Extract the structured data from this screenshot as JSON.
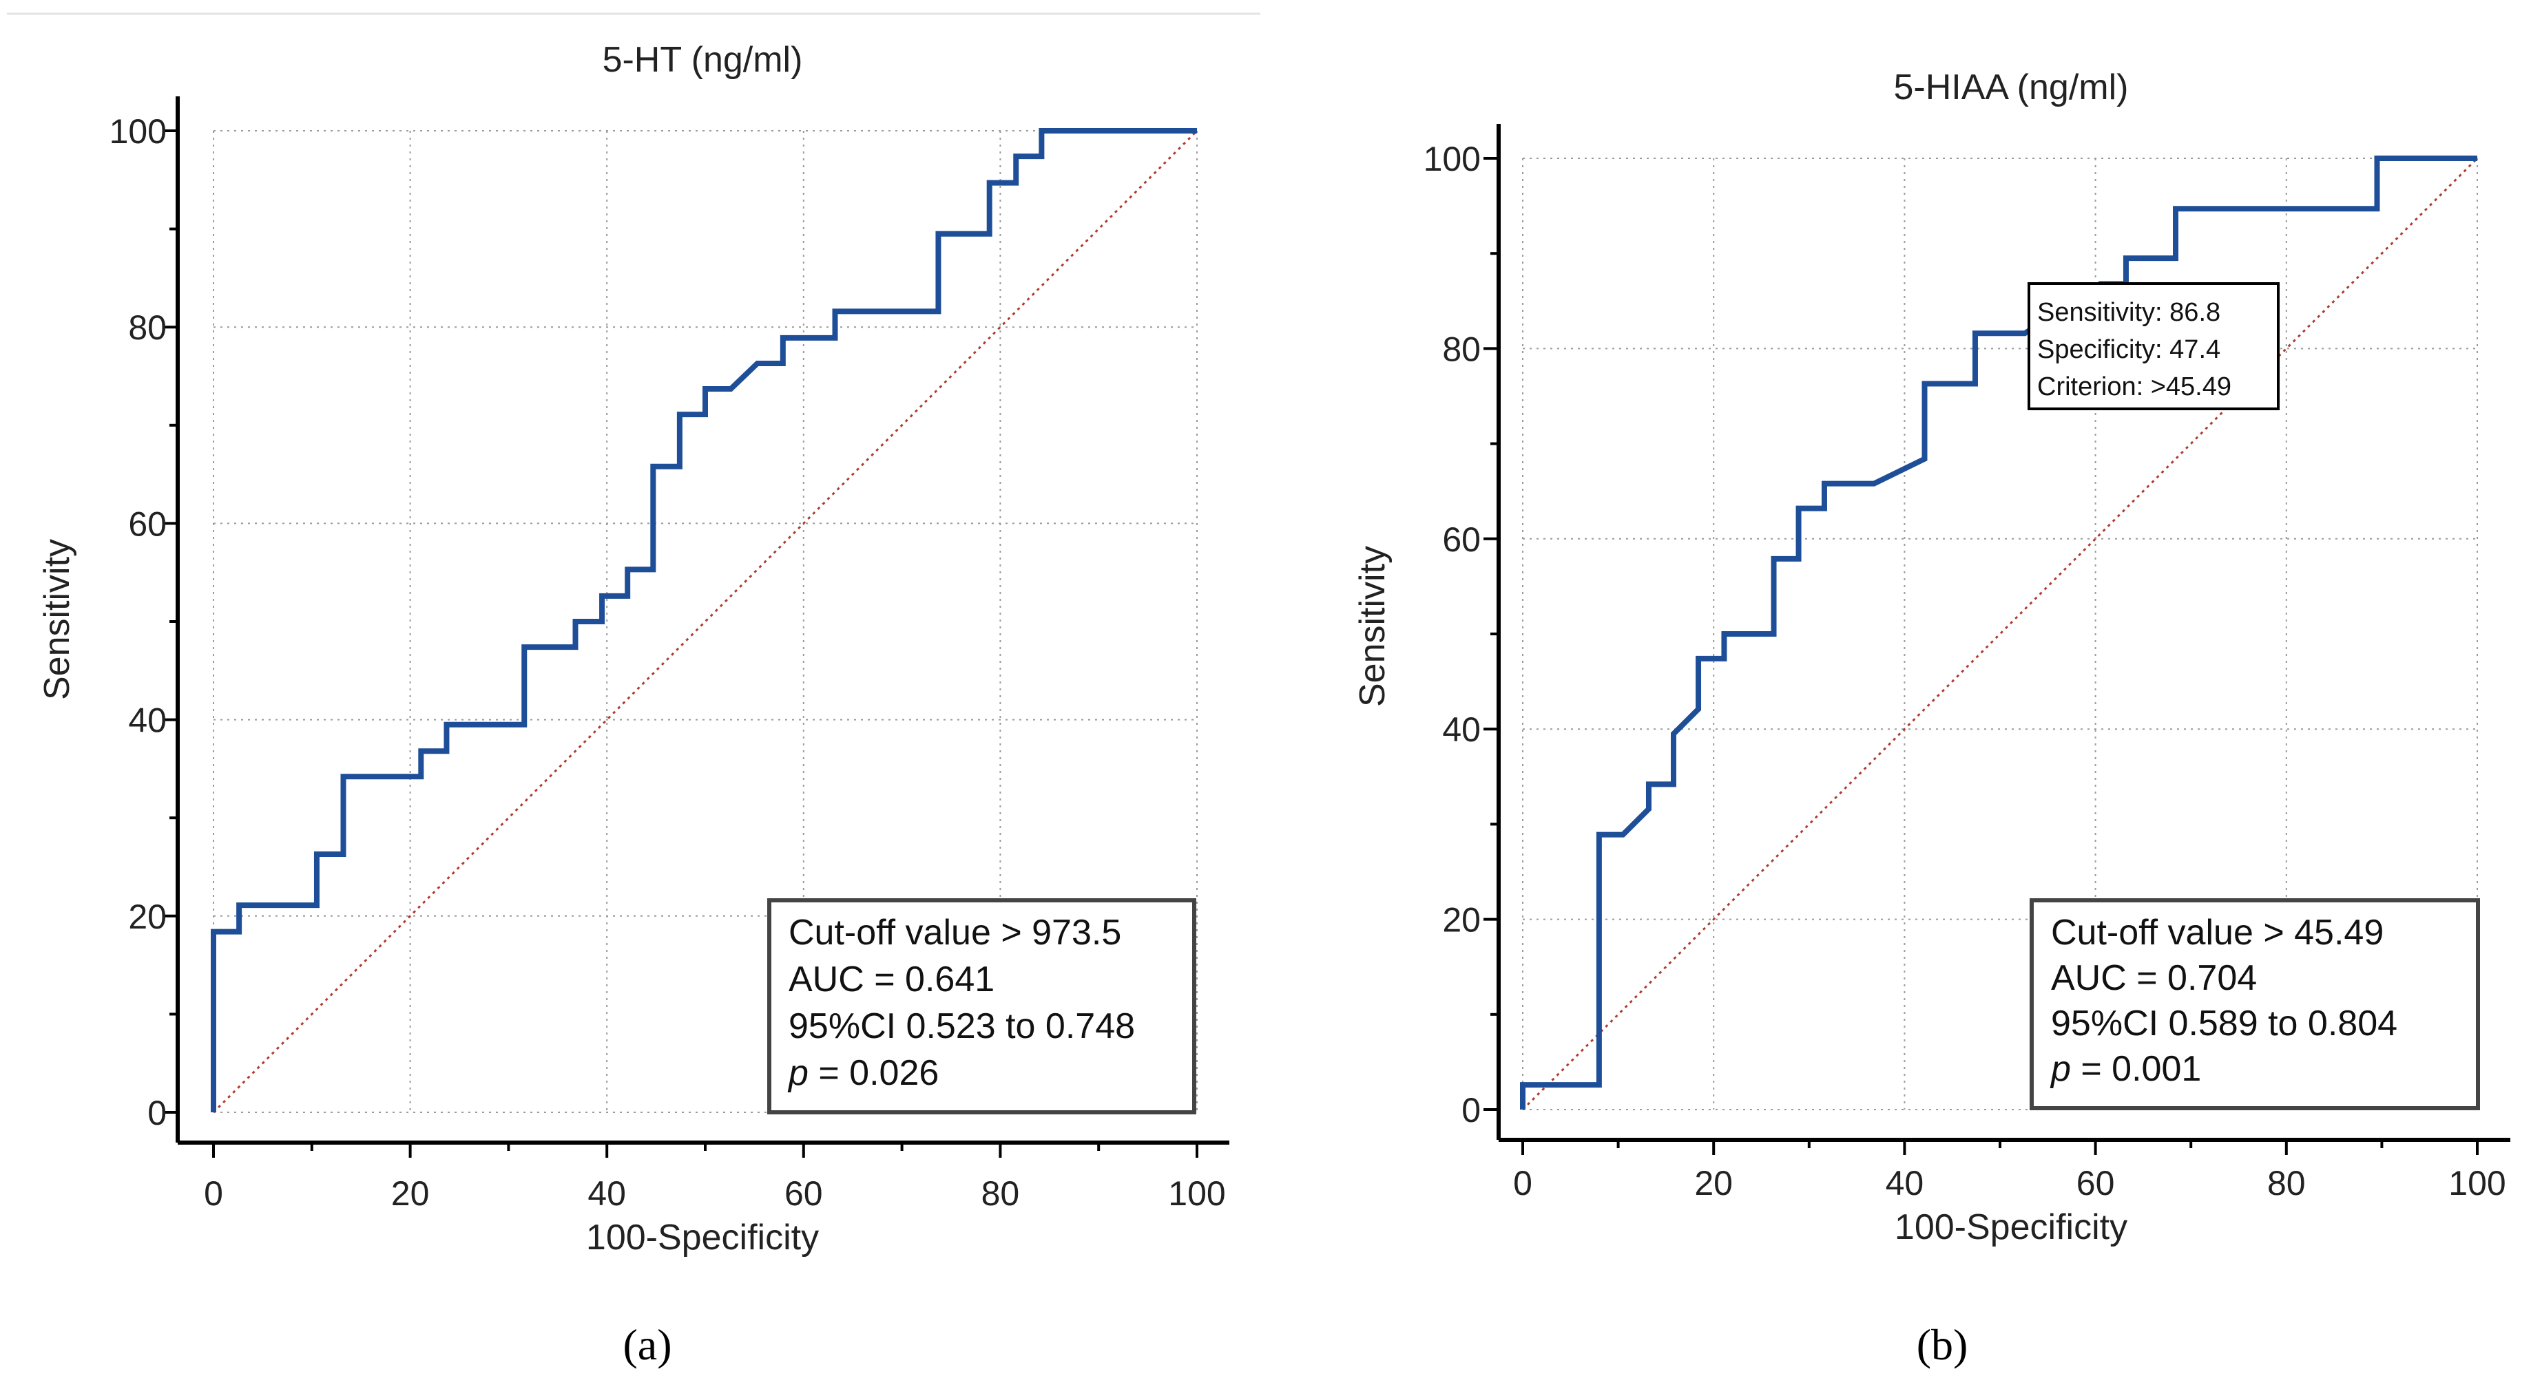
{
  "chart_data": [
    {
      "type": "line",
      "panel_label": "(a)",
      "title": "5-HT (ng/ml)",
      "xlabel": "100-Specificity",
      "ylabel": "Sensitivity",
      "xlim": [
        0,
        100
      ],
      "ylim": [
        0,
        100
      ],
      "xticks": [
        0,
        20,
        40,
        60,
        80,
        100
      ],
      "yticks": [
        0,
        20,
        40,
        60,
        80,
        100
      ],
      "grid": true,
      "colors": {
        "roc": "#1f4e99",
        "reference": "#b03a2e",
        "grid": "#9a9a9a"
      },
      "series": [
        {
          "name": "ROC curve",
          "x": [
            0,
            0,
            2.6,
            2.6,
            10.5,
            10.5,
            13.2,
            13.2,
            21.1,
            21.1,
            23.7,
            23.7,
            31.6,
            31.6,
            36.8,
            36.8,
            39.5,
            39.5,
            42.1,
            42.1,
            44.7,
            44.7,
            47.4,
            47.4,
            50.0,
            50.0,
            52.6,
            55.3,
            57.9,
            57.9,
            63.2,
            63.2,
            73.7,
            73.7,
            78.9,
            78.9,
            81.6,
            81.6,
            84.2,
            84.2,
            100
          ],
          "y": [
            0,
            18.4,
            18.4,
            21.1,
            21.1,
            26.3,
            26.3,
            34.2,
            34.2,
            36.8,
            36.8,
            39.5,
            39.5,
            47.4,
            47.4,
            50.0,
            50.0,
            52.6,
            52.6,
            55.3,
            55.3,
            65.8,
            65.8,
            71.1,
            71.1,
            73.7,
            73.7,
            76.3,
            76.3,
            78.9,
            78.9,
            81.6,
            81.6,
            89.5,
            89.5,
            94.7,
            94.7,
            97.4,
            97.4,
            100,
            100
          ]
        },
        {
          "name": "Reference line",
          "x": [
            0,
            100
          ],
          "y": [
            0,
            100
          ]
        }
      ],
      "legend_box": {
        "position": "bottom-right",
        "lines": [
          "Cut-off value > 973.5",
          "AUC = 0.641",
          "95%CI 0.523 to 0.748"
        ],
        "p_symbol": "p",
        "p_rest": " = 0.026"
      }
    },
    {
      "type": "line",
      "panel_label": "(b)",
      "title": "5-HIAA (ng/ml)",
      "xlabel": "100-Specificity",
      "ylabel": "Sensitivity",
      "xlim": [
        0,
        100
      ],
      "ylim": [
        0,
        100
      ],
      "xticks": [
        0,
        20,
        40,
        60,
        80,
        100
      ],
      "yticks": [
        0,
        20,
        40,
        60,
        80,
        100
      ],
      "grid": true,
      "colors": {
        "roc": "#1f4e99",
        "reference": "#b03a2e",
        "grid": "#9a9a9a"
      },
      "series": [
        {
          "name": "ROC curve",
          "x": [
            0,
            0,
            8.0,
            8.0,
            10.5,
            13.2,
            13.2,
            15.8,
            15.8,
            18.4,
            18.4,
            21.1,
            21.1,
            26.3,
            26.3,
            28.9,
            28.9,
            31.6,
            31.6,
            36.8,
            42.1,
            42.1,
            47.4,
            47.4,
            52.6,
            60.5,
            63.2,
            63.2,
            68.4,
            68.4,
            89.5,
            89.5,
            100
          ],
          "y": [
            0,
            2.6,
            2.6,
            28.9,
            28.9,
            31.6,
            34.2,
            34.2,
            39.5,
            42.1,
            47.4,
            47.4,
            50.0,
            50.0,
            57.9,
            57.9,
            63.2,
            63.2,
            65.8,
            65.8,
            68.4,
            76.3,
            76.3,
            81.6,
            81.6,
            86.8,
            86.8,
            89.5,
            89.5,
            94.7,
            94.7,
            100,
            100
          ]
        },
        {
          "name": "Reference line",
          "x": [
            0,
            100
          ],
          "y": [
            0,
            100
          ]
        }
      ],
      "tooltip": {
        "position": "upper-middle",
        "lines": [
          "Sensitivity: 86.8",
          "Specificity: 47.4",
          "Criterion: >45.49"
        ]
      },
      "legend_box": {
        "position": "bottom-right",
        "lines": [
          "Cut-off value > 45.49",
          "AUC = 0.704",
          "95%CI 0.589 to 0.804"
        ],
        "p_symbol": "p",
        "p_rest": " = 0.001"
      }
    }
  ]
}
